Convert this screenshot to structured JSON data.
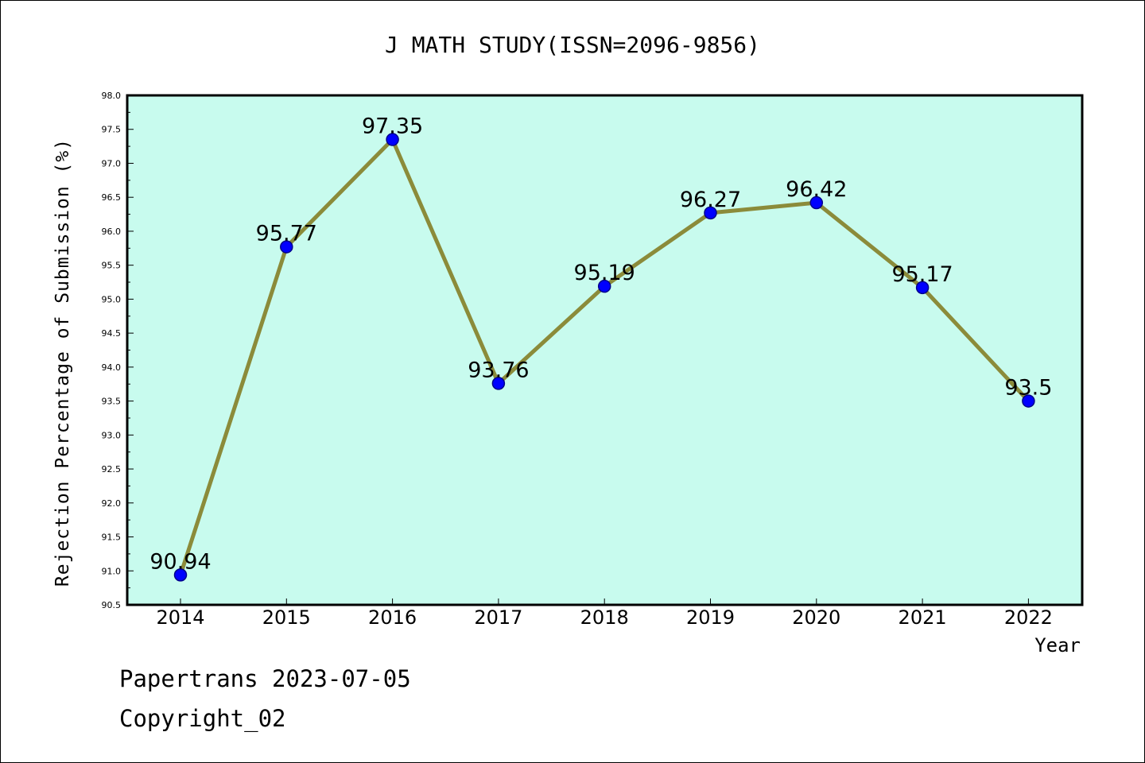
{
  "footer": {
    "line1": "Papertrans 2023-07-05",
    "line2": "Copyright_02"
  },
  "chart_data": {
    "type": "line",
    "title": "J MATH STUDY(ISSN=2096-9856)",
    "xlabel": "Year",
    "ylabel": "Rejection Percentage of Submission (%)",
    "categories": [
      "2014",
      "2015",
      "2016",
      "2017",
      "2018",
      "2019",
      "2020",
      "2021",
      "2022"
    ],
    "values": [
      90.94,
      95.77,
      97.35,
      93.76,
      95.19,
      96.27,
      96.42,
      95.17,
      93.5
    ],
    "data_labels": [
      "90.94",
      "95.77",
      "97.35",
      "93.76",
      "95.19",
      "96.27",
      "96.42",
      "95.17",
      "93.5"
    ],
    "ylim": [
      90.5,
      98.0
    ],
    "yticks": [
      "90.5",
      "91.0",
      "91.5",
      "92.0",
      "92.5",
      "93.0",
      "93.5",
      "94.0",
      "94.5",
      "95.0",
      "95.5",
      "96.0",
      "96.5",
      "97.0",
      "97.5",
      "98.0"
    ],
    "grid": false,
    "colors": {
      "plot_background": "#c8fbee",
      "line": "#8b8b3a",
      "marker_fill": "#0000ff",
      "marker_edge": "#00008b"
    }
  }
}
